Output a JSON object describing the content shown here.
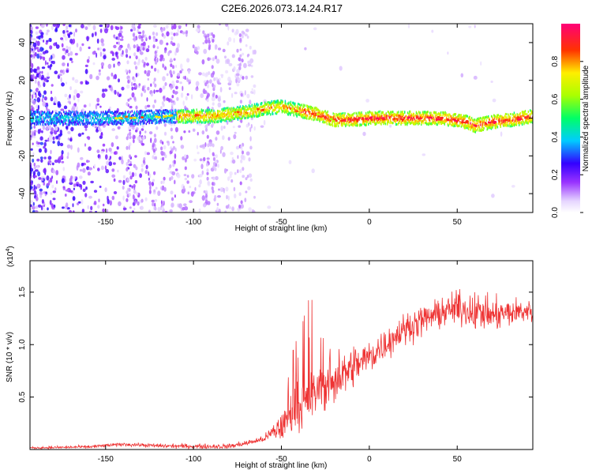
{
  "title": "C2E6.2026.073.14.24.R17",
  "chart_data": [
    {
      "type": "heatmap",
      "name": "spectrogram",
      "xlabel": "Height of straight line (km)",
      "ylabel": "Frequency (Hz)",
      "xlim": [
        -193,
        93
      ],
      "ylim": [
        -50,
        50
      ],
      "xticks": [
        -150,
        -100,
        -50,
        0,
        50
      ],
      "xtick_labels": [
        "-150",
        "-100",
        "-50",
        "0",
        "50"
      ],
      "yticks": [
        -40,
        -20,
        0,
        20,
        40
      ],
      "ytick_labels": [
        "-40",
        "-20",
        "0",
        "20",
        "40"
      ],
      "ridge": {
        "x": [
          -193,
          -160,
          -140,
          -110,
          -90,
          -70,
          -60,
          -50,
          -40,
          -30,
          -20,
          -10,
          0,
          20,
          40,
          55,
          60,
          70,
          80,
          93
        ],
        "y": [
          0,
          0,
          0,
          1,
          1,
          3,
          5,
          6,
          4,
          2,
          -1,
          -1,
          0,
          0,
          0,
          -2,
          -4,
          -2,
          -1,
          1
        ]
      },
      "colorbar": {
        "label": "Normalized spectral amplitude",
        "range": [
          0,
          1
        ],
        "ticks": [
          0,
          0.2,
          0.4,
          0.6,
          0.8
        ],
        "tick_labels": [
          "0.0",
          "0.2",
          "0.4",
          "0.6",
          "0.8"
        ]
      }
    },
    {
      "type": "line",
      "name": "snr",
      "xlabel": "Height of straight line (km)",
      "ylabel": "SNR (10 * v/v)",
      "scale_label": "(x10",
      "scale_exp": "4",
      "scale_close": ")",
      "xlim": [
        -193,
        93
      ],
      "ylim": [
        0,
        18000
      ],
      "xticks": [
        -150,
        -100,
        -50,
        0,
        50
      ],
      "xtick_labels": [
        "-150",
        "-100",
        "-50",
        "0",
        "50"
      ],
      "yticks": [
        5000,
        10000,
        15000
      ],
      "ytick_labels": [
        "0.5",
        "1.0",
        "1.5"
      ],
      "color": "#ee3333",
      "trend": {
        "x": [
          -193,
          -160,
          -140,
          -120,
          -100,
          -80,
          -70,
          -60,
          -50,
          -40,
          -30,
          -20,
          -10,
          0,
          10,
          20,
          30,
          40,
          50,
          60,
          70,
          80,
          93
        ],
        "y": [
          150,
          250,
          500,
          350,
          300,
          300,
          600,
          1000,
          2200,
          3800,
          5500,
          6500,
          7800,
          8800,
          10200,
          11500,
          12300,
          13000,
          13500,
          13200,
          12800,
          13000,
          13300
        ]
      },
      "noise": {
        "x": [
          -193,
          -60,
          -50,
          -30,
          -10,
          10,
          40,
          60,
          93
        ],
        "y": [
          150,
          400,
          2200,
          3500,
          3000,
          2200,
          2000,
          2600,
          1600
        ]
      }
    }
  ]
}
